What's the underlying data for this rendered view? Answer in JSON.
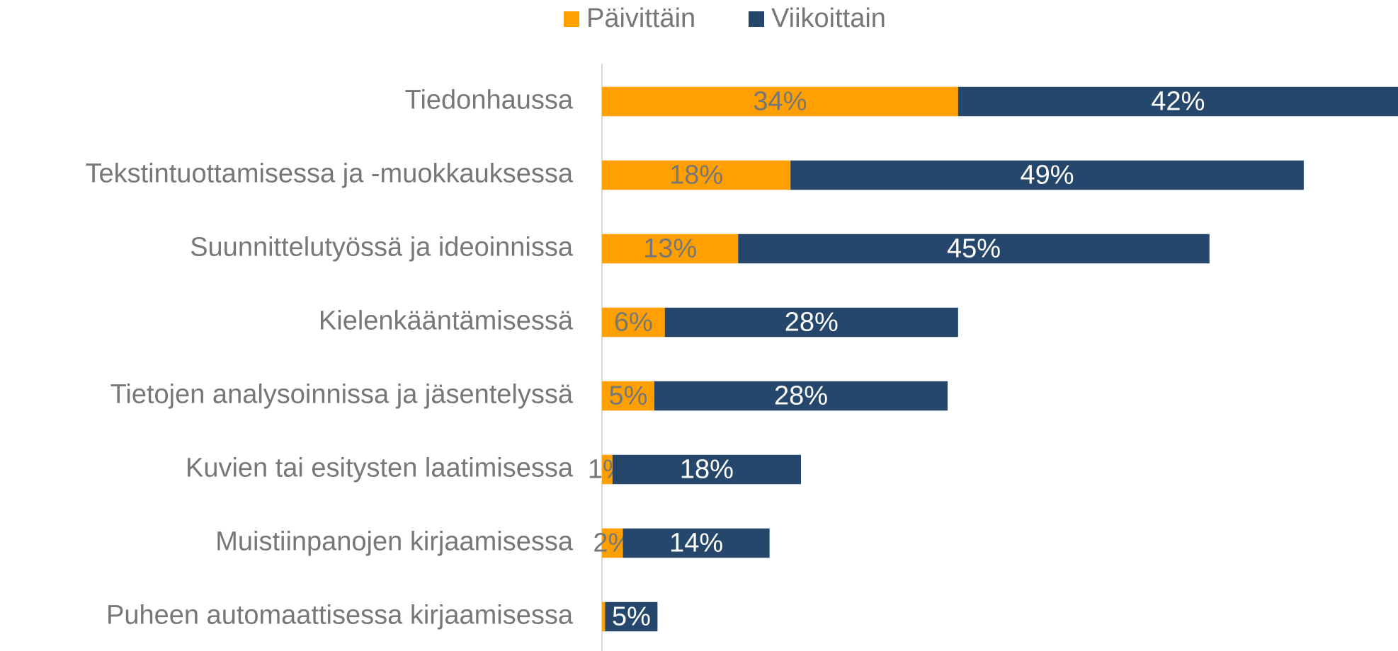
{
  "chart_data": {
    "type": "stacked-bar-horizontal",
    "categories": [
      "Tiedonhaussa",
      "Tekstintuottamisessa ja -muokkauksessa",
      "Suunnittelutyössä ja ideoinnissa",
      "Kielenkääntämisessä",
      "Tietojen analysoinnissa ja jäsentelyssä",
      "Kuvien tai esitysten laatimisessa",
      "Muistiinpanojen kirjaamisessa",
      "Puheen automaattisessa kirjaamisessa"
    ],
    "series": [
      {
        "name": "Päivittäin",
        "color": "#ffa000",
        "values": [
          34,
          18,
          13,
          6,
          5,
          1,
          2,
          0.3
        ],
        "value_labels": [
          "34%",
          "18%",
          "13%",
          "6%",
          "5%",
          "1%",
          "2%",
          null
        ]
      },
      {
        "name": "Viikoittain",
        "color": "#24476b",
        "values": [
          42,
          49,
          45,
          28,
          28,
          18,
          14,
          5
        ],
        "value_labels": [
          "42%",
          "49%",
          "45%",
          "28%",
          "28%",
          "18%",
          "14%",
          "5%"
        ]
      }
    ],
    "xlim": [
      0,
      76
    ],
    "legend": "top"
  }
}
